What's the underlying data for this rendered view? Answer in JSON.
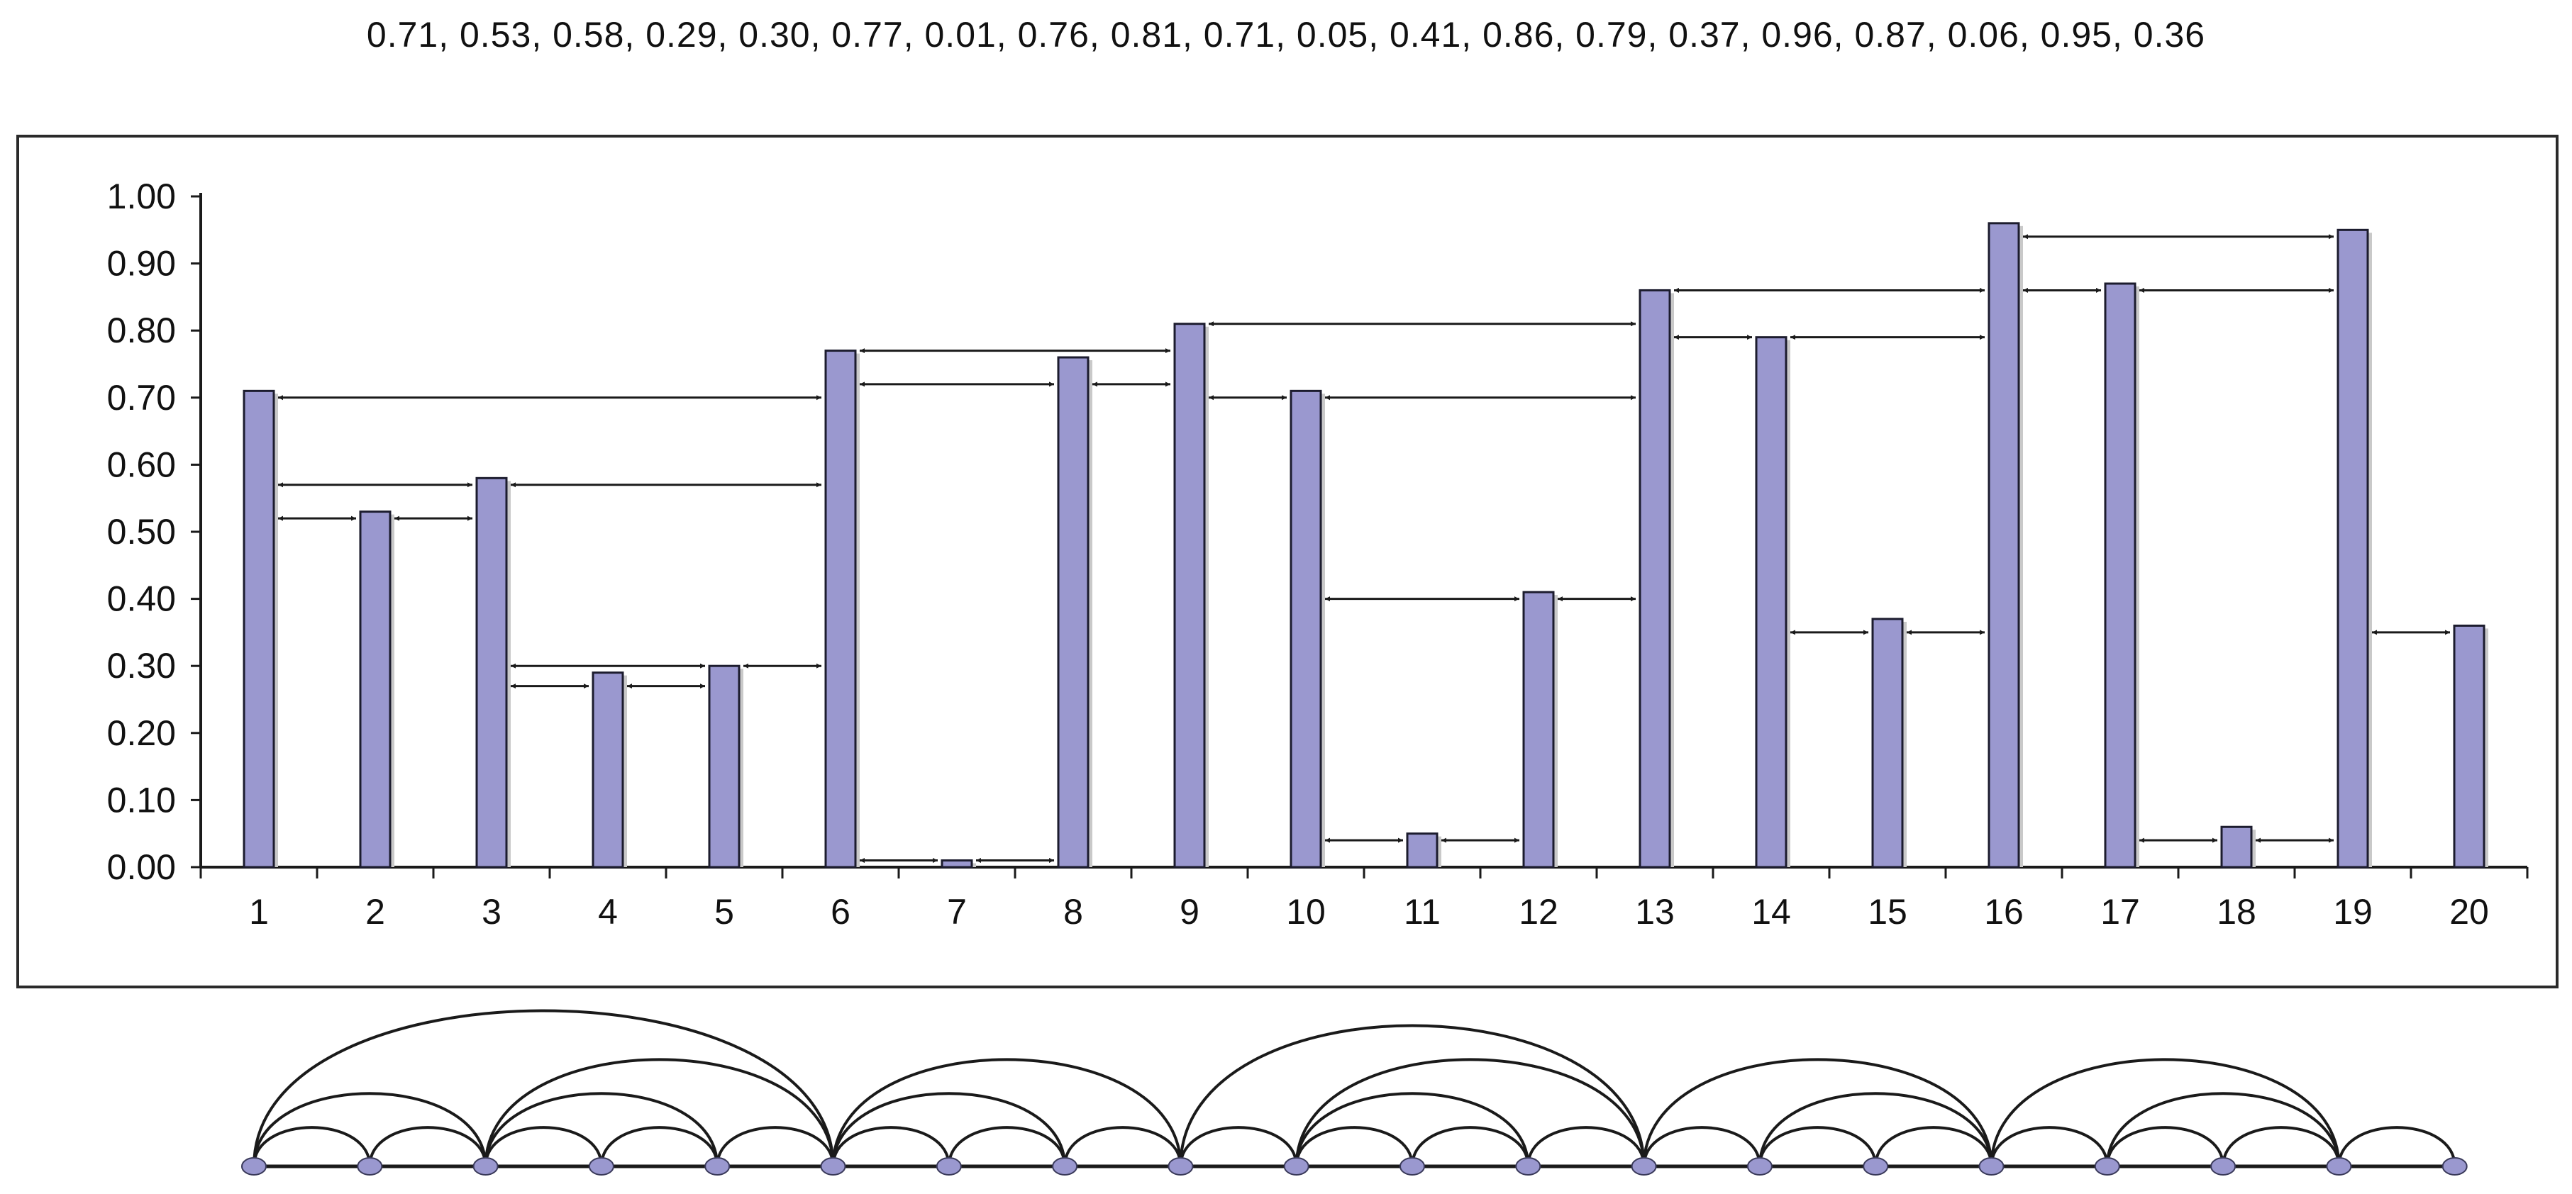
{
  "series_text": "0.71, 0.53, 0.58, 0.29, 0.30, 0.77, 0.01, 0.76, 0.81, 0.71, 0.05, 0.41, 0.86, 0.79, 0.37, 0.96, 0.87, 0.06, 0.95, 0.36",
  "colors": {
    "bar": "#9a98cf",
    "bar_stroke": "#1c1c2e",
    "node": "#9a98cf",
    "line": "#1a1a1a"
  },
  "chart_data": {
    "type": "bar",
    "categories": [
      "1",
      "2",
      "3",
      "4",
      "5",
      "6",
      "7",
      "8",
      "9",
      "10",
      "11",
      "12",
      "13",
      "14",
      "15",
      "16",
      "17",
      "18",
      "19",
      "20"
    ],
    "values": [
      0.71,
      0.53,
      0.58,
      0.29,
      0.3,
      0.77,
      0.01,
      0.76,
      0.81,
      0.71,
      0.05,
      0.41,
      0.86,
      0.79,
      0.37,
      0.96,
      0.87,
      0.06,
      0.95,
      0.36
    ],
    "ylim": [
      0,
      1
    ],
    "yticks": [
      "0.00",
      "0.10",
      "0.20",
      "0.30",
      "0.40",
      "0.50",
      "0.60",
      "0.70",
      "0.80",
      "0.90",
      "1.00"
    ],
    "grid": false,
    "visibility_arrows": [
      {
        "from": 1,
        "to": 6,
        "y": 0.7
      },
      {
        "from": 1,
        "to": 3,
        "y": 0.57
      },
      {
        "from": 1,
        "to": 2,
        "y": 0.52
      },
      {
        "from": 2,
        "to": 3,
        "y": 0.52
      },
      {
        "from": 3,
        "to": 6,
        "y": 0.57
      },
      {
        "from": 3,
        "to": 5,
        "y": 0.3
      },
      {
        "from": 3,
        "to": 4,
        "y": 0.27
      },
      {
        "from": 4,
        "to": 5,
        "y": 0.27
      },
      {
        "from": 5,
        "to": 6,
        "y": 0.3
      },
      {
        "from": 6,
        "to": 9,
        "y": 0.77
      },
      {
        "from": 6,
        "to": 8,
        "y": 0.72
      },
      {
        "from": 6,
        "to": 7,
        "y": 0.01
      },
      {
        "from": 7,
        "to": 8,
        "y": 0.01
      },
      {
        "from": 8,
        "to": 9,
        "y": 0.72
      },
      {
        "from": 9,
        "to": 13,
        "y": 0.81
      },
      {
        "from": 9,
        "to": 10,
        "y": 0.7
      },
      {
        "from": 10,
        "to": 13,
        "y": 0.7
      },
      {
        "from": 10,
        "to": 12,
        "y": 0.4
      },
      {
        "from": 10,
        "to": 11,
        "y": 0.04
      },
      {
        "from": 11,
        "to": 12,
        "y": 0.04
      },
      {
        "from": 12,
        "to": 13,
        "y": 0.4
      },
      {
        "from": 13,
        "to": 16,
        "y": 0.86
      },
      {
        "from": 13,
        "to": 14,
        "y": 0.79
      },
      {
        "from": 14,
        "to": 16,
        "y": 0.79
      },
      {
        "from": 14,
        "to": 15,
        "y": 0.35
      },
      {
        "from": 15,
        "to": 16,
        "y": 0.35
      },
      {
        "from": 16,
        "to": 19,
        "y": 0.94
      },
      {
        "from": 16,
        "to": 17,
        "y": 0.86
      },
      {
        "from": 17,
        "to": 19,
        "y": 0.86
      },
      {
        "from": 17,
        "to": 18,
        "y": 0.04
      },
      {
        "from": 18,
        "to": 19,
        "y": 0.04
      },
      {
        "from": 19,
        "to": 20,
        "y": 0.35
      }
    ],
    "graph_nodes": [
      "1",
      "2",
      "3",
      "4",
      "5",
      "6",
      "7",
      "8",
      "9",
      "10",
      "11",
      "12",
      "13",
      "14",
      "15",
      "16",
      "17",
      "18",
      "19",
      "20"
    ],
    "graph_edges": [
      [
        1,
        2
      ],
      [
        1,
        3
      ],
      [
        1,
        6
      ],
      [
        2,
        3
      ],
      [
        3,
        4
      ],
      [
        3,
        5
      ],
      [
        3,
        6
      ],
      [
        4,
        5
      ],
      [
        5,
        6
      ],
      [
        6,
        7
      ],
      [
        6,
        8
      ],
      [
        6,
        9
      ],
      [
        7,
        8
      ],
      [
        8,
        9
      ],
      [
        9,
        10
      ],
      [
        9,
        13
      ],
      [
        10,
        11
      ],
      [
        10,
        12
      ],
      [
        10,
        13
      ],
      [
        11,
        12
      ],
      [
        12,
        13
      ],
      [
        13,
        14
      ],
      [
        13,
        16
      ],
      [
        14,
        15
      ],
      [
        14,
        16
      ],
      [
        15,
        16
      ],
      [
        16,
        17
      ],
      [
        16,
        19
      ],
      [
        17,
        18
      ],
      [
        17,
        19
      ],
      [
        18,
        19
      ],
      [
        19,
        20
      ]
    ]
  }
}
